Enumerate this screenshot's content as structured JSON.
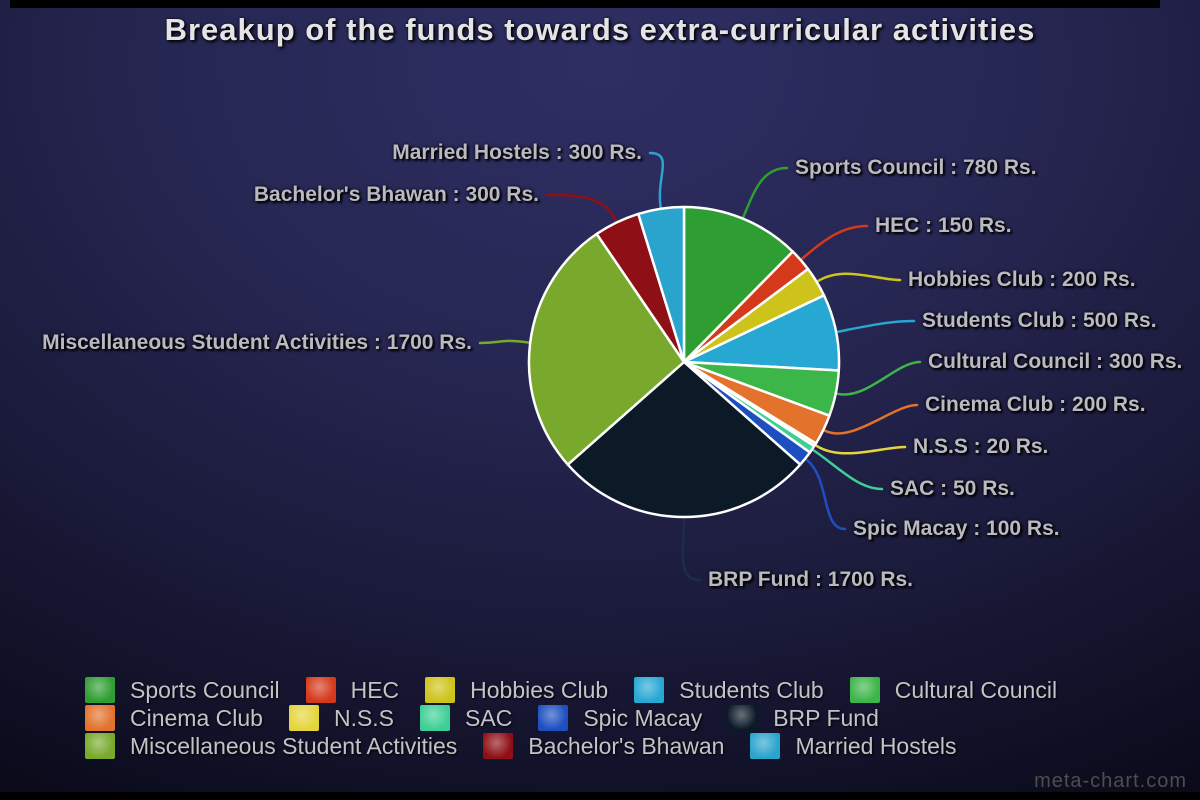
{
  "title": "Breakup of the funds towards extra-curricular activities",
  "watermark": "meta-chart.com",
  "chart_data": {
    "type": "pie",
    "title": "Breakup of the funds towards extra-curricular activities",
    "unit": "Rs.",
    "total": 6300,
    "legend_position": "bottom",
    "grid": false,
    "slices": [
      {
        "name": "Sports Council",
        "value": 780,
        "color": "#2f9e32",
        "callout": "Sports Council : 780 Rs."
      },
      {
        "name": "HEC",
        "value": 150,
        "color": "#d5391b",
        "callout": "HEC : 150 Rs."
      },
      {
        "name": "Hobbies Club",
        "value": 200,
        "color": "#cdc31b",
        "callout": "Hobbies Club : 200 Rs."
      },
      {
        "name": "Students Club",
        "value": 500,
        "color": "#27a8d3",
        "callout": "Students Club : 500 Rs."
      },
      {
        "name": "Cultural Council",
        "value": 300,
        "color": "#3cb549",
        "callout": "Cultural Council : 300 Rs."
      },
      {
        "name": "Cinema Club",
        "value": 200,
        "color": "#e2722c",
        "callout": "Cinema Club : 200 Rs."
      },
      {
        "name": "N.S.S",
        "value": 20,
        "color": "#e5d53c",
        "callout": "N.S.S : 20 Rs."
      },
      {
        "name": "SAC",
        "value": 50,
        "color": "#3ecf96",
        "callout": "SAC : 50 Rs."
      },
      {
        "name": "Spic Macay",
        "value": 100,
        "color": "#1d4fc0",
        "callout": "Spic Macay : 100 Rs."
      },
      {
        "name": "BRP Fund",
        "value": 1700,
        "color": "#0c1a28",
        "line_color": "#1c2c4a",
        "callout": "BRP Fund : 1700 Rs."
      },
      {
        "name": "Miscellaneous Student Activities",
        "value": 1700,
        "color": "#78a92c",
        "callout": "Miscellaneous Student Activities : 1700 Rs."
      },
      {
        "name": "Bachelor's Bhawan",
        "value": 300,
        "color": "#8e1016",
        "callout": "Bachelor's Bhawan : 300 Rs."
      },
      {
        "name": "Married Hostels",
        "value": 300,
        "color": "#2aa4cd",
        "callout": "Married Hostels : 300 Rs."
      }
    ]
  }
}
